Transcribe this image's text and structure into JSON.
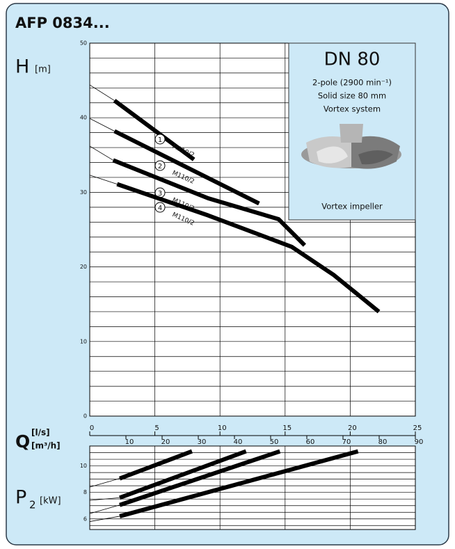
{
  "title": "AFP 0834...",
  "info": {
    "title": "DN 80",
    "lines": [
      "2-pole (2900 min⁻¹)",
      "Solid size 80 mm",
      "Vortex system"
    ],
    "caption": "Vortex impeller"
  },
  "chart_data": [
    {
      "type": "line",
      "y_label": "H",
      "y_unit": "[m]",
      "ylim": [
        0,
        50
      ],
      "yticks": [
        0,
        10,
        20,
        30,
        40,
        50
      ],
      "grid_step": 2,
      "x_label": "Q",
      "x_unit": "[l/s]",
      "xlim": [
        0,
        25
      ],
      "xticks": [
        0,
        5,
        10,
        15,
        20,
        25
      ],
      "x2_unit": "[m³/h]",
      "x2lim": [
        0,
        90
      ],
      "x2ticks": [
        10,
        20,
        30,
        40,
        50,
        60,
        70,
        80,
        90
      ],
      "series": [
        {
          "name": "1",
          "label": "M110/2",
          "color": "#000000",
          "x": [
            0,
            1.9,
            8.0
          ],
          "values": [
            44.4,
            42.3,
            34.4
          ]
        },
        {
          "name": "2",
          "label": "M110/2",
          "color": "#000000",
          "x": [
            0,
            1.9,
            13.0
          ],
          "values": [
            39.9,
            38.2,
            28.5
          ]
        },
        {
          "name": "3",
          "label": "M110/2",
          "color": "#000000",
          "x": [
            0,
            1.8,
            9.1,
            14.5,
            16.5
          ],
          "values": [
            36.2,
            34.3,
            29.2,
            26.4,
            22.9
          ]
        },
        {
          "name": "4",
          "label": "M110/2",
          "color": "#000000",
          "x": [
            0,
            2.1,
            9.1,
            15.5,
            18.75,
            22.2
          ],
          "values": [
            32.3,
            31.1,
            26.9,
            22.7,
            18.9,
            14.0
          ]
        }
      ]
    },
    {
      "type": "line",
      "y_label": "P",
      "y_sub": "2",
      "y_unit": "[kW]",
      "ylim": [
        5.2,
        11.5
      ],
      "yticks": [
        6,
        8,
        10
      ],
      "grid_step": 0.5,
      "xlim": [
        0,
        25
      ],
      "xticks": [
        0,
        5,
        10,
        15,
        20,
        25
      ],
      "series": [
        {
          "name": "1",
          "color": "#000000",
          "x": [
            0,
            2.3,
            7.85
          ],
          "values": [
            8.4,
            9.05,
            11.1
          ]
        },
        {
          "name": "2",
          "color": "#000000",
          "x": [
            0,
            2.3,
            12.0
          ],
          "values": [
            7.4,
            7.6,
            11.1
          ]
        },
        {
          "name": "3",
          "color": "#000000",
          "x": [
            0,
            2.3,
            14.6
          ],
          "values": [
            6.4,
            7.05,
            11.1
          ]
        },
        {
          "name": "4",
          "color": "#000000",
          "x": [
            0,
            2.3,
            20.6
          ],
          "values": [
            5.8,
            6.2,
            11.1
          ]
        }
      ]
    }
  ]
}
